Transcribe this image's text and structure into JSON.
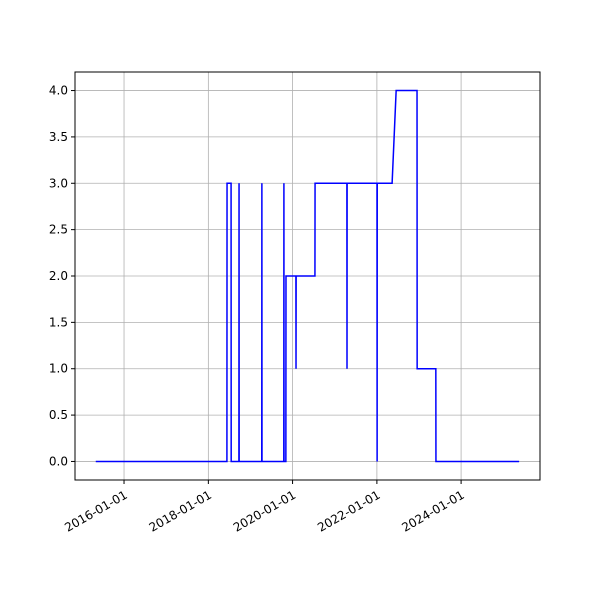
{
  "chart_data": {
    "type": "line",
    "color": "#0000ff",
    "grid": true,
    "x": [
      "2015-05-01",
      "2018-06-11",
      "2018-06-12",
      "2018-07-17",
      "2018-07-18",
      "2018-09-23",
      "2018-09-24",
      "2018-09-25",
      "2019-04-09",
      "2019-04-10",
      "2019-04-11",
      "2019-10-17",
      "2019-10-18",
      "2019-10-19",
      "2019-11-04",
      "2019-11-05",
      "2020-01-30",
      "2020-01-31",
      "2020-02-01",
      "2020-07-13",
      "2020-07-14",
      "2021-04-16",
      "2021-04-17",
      "2021-04-18",
      "2022-01-02",
      "2022-01-03",
      "2022-01-04",
      "2022-05-13",
      "2022-06-17",
      "2022-12-15",
      "2022-12-16",
      "2023-05-27",
      "2023-05-28",
      "2025-05-18"
    ],
    "values": [
      0,
      0,
      3,
      3,
      0,
      0,
      3,
      0,
      0,
      3,
      0,
      0,
      3,
      0,
      0,
      2,
      2,
      1,
      2,
      2,
      3,
      3,
      1,
      3,
      3,
      0,
      3,
      3,
      4,
      4,
      1,
      1,
      0,
      0
    ],
    "xlim": [
      "2014-11-02",
      "2025-11-15"
    ],
    "xticks": [
      "2016-01-01",
      "2018-01-01",
      "2020-01-01",
      "2022-01-01",
      "2024-01-01"
    ],
    "ylim": [
      -0.2,
      4.2
    ],
    "yticks": [
      {
        "value": 0,
        "label": "0.0"
      },
      {
        "value": 0.5,
        "label": "0.5"
      },
      {
        "value": 1,
        "label": "1.0"
      },
      {
        "value": 1.5,
        "label": "1.5"
      },
      {
        "value": 2,
        "label": "2.0"
      },
      {
        "value": 2.5,
        "label": "2.5"
      },
      {
        "value": 3,
        "label": "3.0"
      },
      {
        "value": 3.5,
        "label": "3.5"
      },
      {
        "value": 4,
        "label": "4.0"
      }
    ]
  }
}
